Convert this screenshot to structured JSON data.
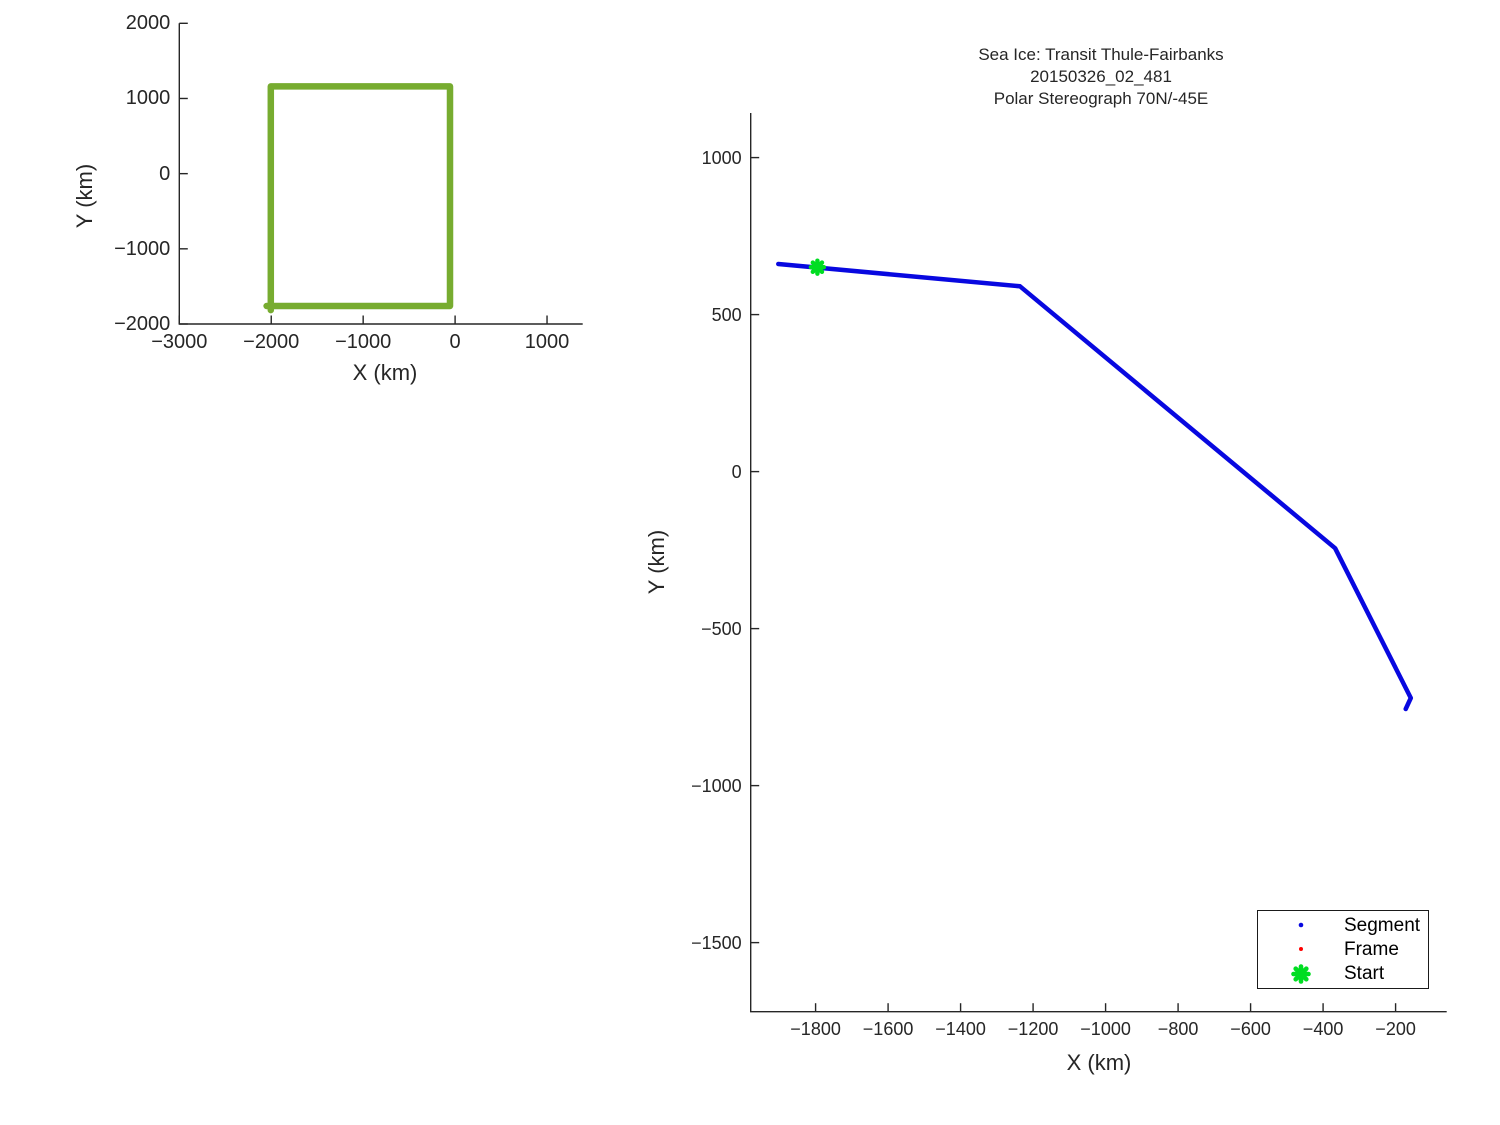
{
  "figure": {
    "background": "#ffffff"
  },
  "colors": {
    "axis": "#262626",
    "box_green": "#77ac30",
    "segment_blue": "#0808e0",
    "frame_red": "#ff0000",
    "start_green": "#00dd22"
  },
  "chart_data": [
    {
      "type": "line",
      "name": "survey-box-overview",
      "title": "",
      "xlabel": "X (km)",
      "ylabel": "Y (km)",
      "xlim": [
        -3000,
        1388
      ],
      "ylim": [
        -2000,
        2000
      ],
      "grid": false,
      "xtick_values": [
        -3000,
        -2000,
        -1000,
        0,
        1000
      ],
      "xtick_labels": [
        "−3000",
        "−2000",
        "−1000",
        "0",
        "1000"
      ],
      "ytick_values": [
        -2000,
        -1000,
        0,
        1000,
        2000
      ],
      "ytick_labels": [
        "−2000",
        "−1000",
        "0",
        "1000",
        "2000"
      ],
      "series": [
        {
          "name": "flight-box-outline",
          "color": "box_green",
          "linewidth": 6.5,
          "points": [
            [
              -2005,
              -1815
            ],
            [
              -2005,
              1160
            ],
            [
              -55,
              1160
            ],
            [
              -55,
              -1760
            ],
            [
              -2050,
              -1760
            ]
          ]
        }
      ]
    },
    {
      "type": "line",
      "name": "transit-track",
      "title": [
        "Sea Ice: Transit Thule-Fairbanks",
        "20150326_02_481",
        "Polar Stereograph 70N/-45E"
      ],
      "xlabel": "X (km)",
      "ylabel": "Y (km)",
      "xlim": [
        -1979,
        -59
      ],
      "ylim": [
        -1720,
        1142
      ],
      "grid": false,
      "xtick_values": [
        -1800,
        -1600,
        -1400,
        -1200,
        -1000,
        -800,
        -600,
        -400,
        -200
      ],
      "xtick_labels": [
        "−1800",
        "−1600",
        "−1400",
        "−1200",
        "−1000",
        "−800",
        "−600",
        "−400",
        "−200"
      ],
      "ytick_values": [
        -1500,
        -1000,
        -500,
        0,
        500,
        1000
      ],
      "ytick_labels": [
        "−1500",
        "−1000",
        "−500",
        "0",
        "500",
        "1000"
      ],
      "series": [
        {
          "name": "segment-track",
          "color": "segment_blue",
          "linewidth": 4.5,
          "points": [
            [
              -1903,
              661
            ],
            [
              -1236,
              590
            ],
            [
              -367,
              -244
            ],
            [
              -158,
              -721
            ],
            [
              -172,
              -756
            ]
          ]
        }
      ],
      "start_marker": {
        "x": -1795,
        "y": 651,
        "color": "start_green",
        "size": 13
      },
      "legend": {
        "position": "bottom-right",
        "items": [
          {
            "label": "Segment",
            "marker": "dot",
            "color": "segment_blue"
          },
          {
            "label": "Frame",
            "marker": "dot",
            "color": "frame_red"
          },
          {
            "label": "Start",
            "marker": "star",
            "color": "start_green"
          }
        ]
      }
    }
  ]
}
